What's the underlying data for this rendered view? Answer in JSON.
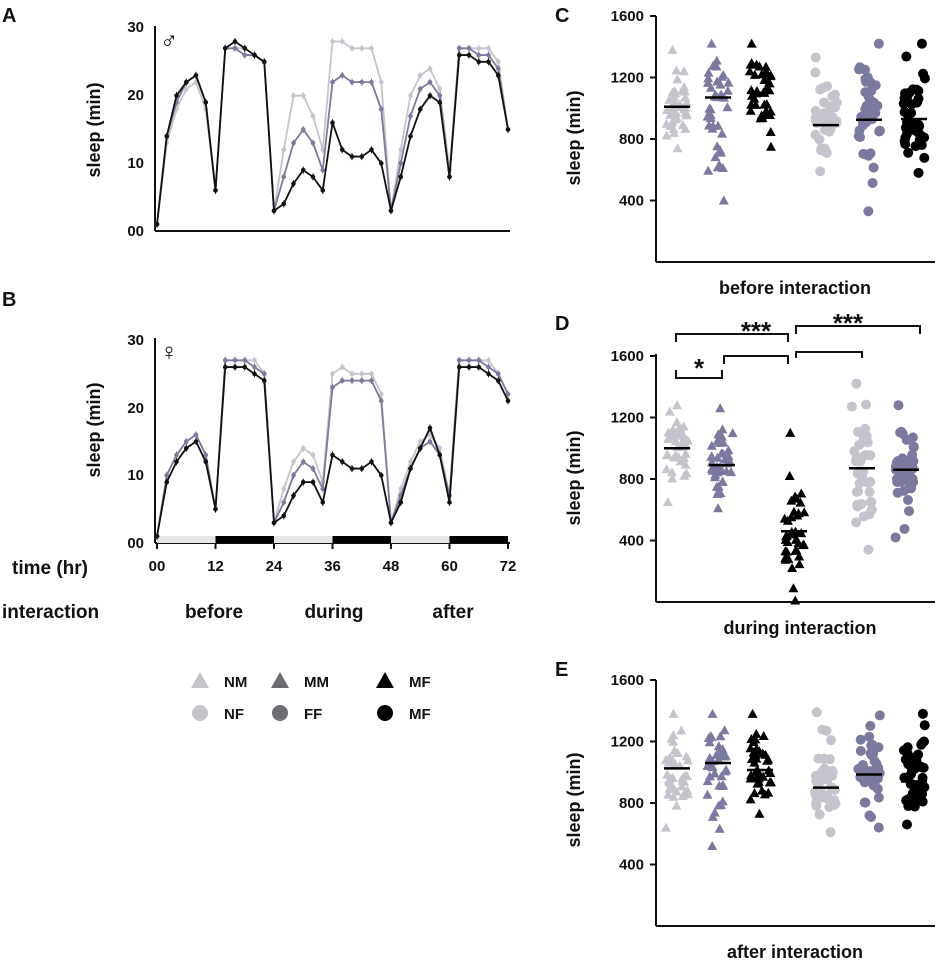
{
  "figure": {
    "panel_A": {
      "letter": "A",
      "ylabel": "sleep (min)",
      "sex_symbol": "♂",
      "yticks": [
        "00",
        "10",
        "20",
        "30"
      ]
    },
    "panel_B": {
      "letter": "B",
      "ylabel": "sleep (min)",
      "sex_symbol": "♀",
      "yticks": [
        "00",
        "10",
        "20",
        "30"
      ],
      "xticks": [
        "00",
        "12",
        "24",
        "36",
        "48",
        "60",
        "72"
      ]
    },
    "time_label": "time (hr)",
    "interaction_label": "interaction",
    "phases": [
      "before",
      "during",
      "after"
    ],
    "legend": [
      {
        "label": "NM",
        "shape": "triangle",
        "color": "#c4c4cc"
      },
      {
        "label": "MM",
        "shape": "triangle",
        "color": "#6e6e72"
      },
      {
        "label": "MF",
        "shape": "triangle",
        "color": "#000000"
      },
      {
        "label": "NF",
        "shape": "circle",
        "color": "#c4c4cc"
      },
      {
        "label": "FF",
        "shape": "circle",
        "color": "#6e6e72"
      },
      {
        "label": "MF",
        "shape": "circle",
        "color": "#000000"
      }
    ],
    "panel_C": {
      "letter": "C",
      "ylabel": "sleep (min)",
      "xtitle": "before interaction",
      "yticks": [
        "400",
        "800",
        "1200",
        "1600"
      ]
    },
    "panel_D": {
      "letter": "D",
      "ylabel": "sleep (min)",
      "xtitle": "during interaction",
      "yticks": [
        "400",
        "800",
        "1200",
        "1600"
      ],
      "sig_labels": [
        "*",
        "***",
        "***"
      ]
    },
    "panel_E": {
      "letter": "E",
      "ylabel": "sleep (min)",
      "xtitle": "after interaction",
      "yticks": [
        "400",
        "800",
        "1200",
        "1600"
      ]
    }
  },
  "colors": {
    "light": "#c4c4cc",
    "mid": "#7a7a9e",
    "dark": "#000000",
    "bar_light": "#e6e6e6"
  },
  "chart_data": [
    {
      "id": "A",
      "type": "line",
      "title": "",
      "xlabel": "time (hr)",
      "ylabel": "sleep (min)",
      "xlim": [
        0,
        72
      ],
      "ylim": [
        0,
        30
      ],
      "x": [
        0,
        2,
        4,
        6,
        8,
        10,
        12,
        14,
        16,
        18,
        20,
        22,
        24,
        26,
        28,
        30,
        32,
        34,
        36,
        38,
        40,
        42,
        44,
        46,
        48,
        50,
        52,
        54,
        56,
        58,
        60,
        62,
        64,
        66,
        68,
        70,
        72
      ],
      "series": [
        {
          "name": "NM",
          "values": [
            1,
            13,
            18,
            21,
            22,
            18,
            6,
            27,
            27,
            27,
            26,
            25,
            3,
            12,
            20,
            20,
            17,
            12,
            28,
            28,
            27,
            27,
            27,
            22,
            3,
            12,
            20,
            23,
            24,
            21,
            9,
            27,
            27,
            27,
            27,
            25,
            15
          ]
        },
        {
          "name": "MM",
          "values": [
            1,
            14,
            19,
            22,
            23,
            19,
            6,
            27,
            27,
            26,
            26,
            25,
            3,
            8,
            13,
            15,
            13,
            9,
            22,
            23,
            22,
            22,
            22,
            18,
            3,
            10,
            17,
            21,
            22,
            20,
            8,
            27,
            27,
            26,
            26,
            24,
            15
          ]
        },
        {
          "name": "MF",
          "values": [
            1,
            14,
            20,
            22,
            23,
            19,
            6,
            27,
            28,
            27,
            26,
            25,
            3,
            4,
            7,
            9,
            8,
            6,
            16,
            12,
            11,
            11,
            12,
            10,
            3,
            8,
            14,
            18,
            20,
            19,
            8,
            26,
            26,
            25,
            25,
            23,
            15
          ]
        }
      ]
    },
    {
      "id": "B",
      "type": "line",
      "title": "",
      "xlabel": "time (hr)",
      "ylabel": "sleep (min)",
      "xlim": [
        0,
        72
      ],
      "ylim": [
        0,
        30
      ],
      "x": [
        0,
        2,
        4,
        6,
        8,
        10,
        12,
        14,
        16,
        18,
        20,
        22,
        24,
        26,
        28,
        30,
        32,
        34,
        36,
        38,
        40,
        42,
        44,
        46,
        48,
        50,
        52,
        54,
        56,
        58,
        60,
        62,
        64,
        66,
        68,
        70,
        72
      ],
      "series": [
        {
          "name": "NF",
          "values": [
            1,
            10,
            13,
            15,
            16,
            13,
            5,
            27,
            27,
            27,
            27,
            25,
            3,
            8,
            12,
            14,
            13,
            9,
            25,
            26,
            25,
            25,
            25,
            22,
            3,
            8,
            12,
            15,
            16,
            14,
            7,
            27,
            27,
            27,
            27,
            25,
            22
          ]
        },
        {
          "name": "FF",
          "values": [
            1,
            10,
            13,
            15,
            16,
            13,
            5,
            27,
            27,
            27,
            26,
            25,
            3,
            6,
            10,
            12,
            11,
            8,
            23,
            24,
            24,
            24,
            24,
            21,
            3,
            7,
            11,
            14,
            15,
            13,
            7,
            27,
            27,
            27,
            26,
            25,
            22
          ]
        },
        {
          "name": "MF",
          "values": [
            1,
            9,
            12,
            14,
            15,
            12,
            5,
            26,
            26,
            26,
            25,
            24,
            3,
            4,
            7,
            9,
            9,
            6,
            13,
            12,
            11,
            11,
            12,
            10,
            3,
            6,
            11,
            14,
            17,
            13,
            6,
            26,
            26,
            26,
            25,
            24,
            21
          ]
        }
      ]
    },
    {
      "id": "C",
      "type": "scatter",
      "title": "",
      "xlabel": "before interaction",
      "ylabel": "sleep (min)",
      "ylim": [
        0,
        1600
      ],
      "groups": [
        {
          "name": "NM",
          "shape": "triangle",
          "color": "light",
          "median": 1010,
          "min": 740,
          "max": 1380
        },
        {
          "name": "MM",
          "shape": "triangle",
          "color": "mid",
          "median": 1070,
          "min": 400,
          "max": 1420
        },
        {
          "name": "MF",
          "shape": "triangle",
          "color": "dark",
          "median": 1100,
          "min": 750,
          "max": 1420
        },
        {
          "name": "NF",
          "shape": "circle",
          "color": "light",
          "median": 890,
          "min": 590,
          "max": 1330
        },
        {
          "name": "FF",
          "shape": "circle",
          "color": "mid",
          "median": 925,
          "min": 330,
          "max": 1420
        },
        {
          "name": "MF",
          "shape": "circle",
          "color": "dark",
          "median": 930,
          "min": 580,
          "max": 1420
        }
      ]
    },
    {
      "id": "D",
      "type": "scatter",
      "title": "",
      "xlabel": "during interaction",
      "ylabel": "sleep (min)",
      "ylim": [
        0,
        1600
      ],
      "groups": [
        {
          "name": "NM",
          "shape": "triangle",
          "color": "light",
          "median": 1000,
          "min": 650,
          "max": 1280
        },
        {
          "name": "MM",
          "shape": "triangle",
          "color": "mid",
          "median": 890,
          "min": 610,
          "max": 1260
        },
        {
          "name": "MF",
          "shape": "triangle",
          "color": "dark",
          "median": 460,
          "min": 10,
          "max": 1100
        },
        {
          "name": "NF",
          "shape": "circle",
          "color": "light",
          "median": 870,
          "min": 340,
          "max": 1420
        },
        {
          "name": "FF",
          "shape": "circle",
          "color": "mid",
          "median": 860,
          "min": 420,
          "max": 1280
        }
      ]
    },
    {
      "id": "E",
      "type": "scatter",
      "title": "",
      "xlabel": "after interaction",
      "ylabel": "sleep (min)",
      "ylim": [
        0,
        1600
      ],
      "groups": [
        {
          "name": "NM",
          "shape": "triangle",
          "color": "light",
          "median": 1025,
          "min": 640,
          "max": 1380
        },
        {
          "name": "MM",
          "shape": "triangle",
          "color": "mid",
          "median": 1060,
          "min": 520,
          "max": 1380
        },
        {
          "name": "MF",
          "shape": "triangle",
          "color": "dark",
          "median": 1015,
          "min": 730,
          "max": 1380
        },
        {
          "name": "NF",
          "shape": "circle",
          "color": "light",
          "median": 900,
          "min": 610,
          "max": 1390
        },
        {
          "name": "FF",
          "shape": "circle",
          "color": "mid",
          "median": 985,
          "min": 640,
          "max": 1370
        },
        {
          "name": "MF",
          "shape": "circle",
          "color": "dark",
          "median": 940,
          "min": 660,
          "max": 1380
        }
      ]
    }
  ]
}
